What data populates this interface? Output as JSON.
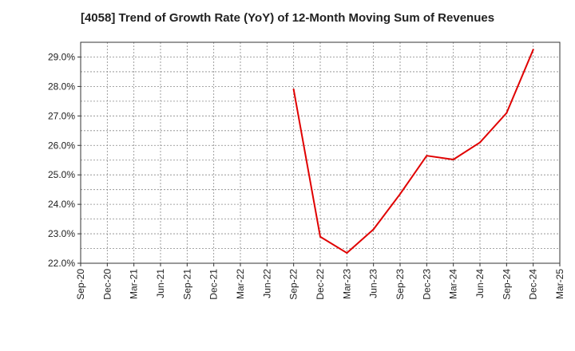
{
  "chart_data": {
    "type": "line",
    "title": "[4058]  Trend of Growth Rate (YoY) of 12-Month Moving Sum of Revenues",
    "xlabel": "",
    "ylabel": "",
    "x_ticks": [
      "Sep-20",
      "Dec-20",
      "Mar-21",
      "Jun-21",
      "Sep-21",
      "Dec-21",
      "Mar-22",
      "Jun-22",
      "Sep-22",
      "Dec-22",
      "Mar-23",
      "Jun-23",
      "Sep-23",
      "Dec-23",
      "Mar-24",
      "Jun-24",
      "Sep-24",
      "Dec-24",
      "Mar-25"
    ],
    "y_ticks": [
      "22.0%",
      "23.0%",
      "24.0%",
      "25.0%",
      "26.0%",
      "27.0%",
      "28.0%",
      "29.0%"
    ],
    "ylim": [
      22.0,
      29.5
    ],
    "grid": true,
    "series": [
      {
        "color": "#e00000",
        "x": [
          "Sep-22",
          "Dec-22",
          "Mar-23",
          "Jun-23",
          "Sep-23",
          "Dec-23",
          "Mar-24",
          "Jun-24",
          "Sep-24",
          "Dec-24"
        ],
        "values": [
          27.9,
          22.9,
          22.35,
          23.15,
          24.35,
          25.65,
          25.52,
          26.1,
          27.1,
          29.25
        ]
      }
    ]
  }
}
